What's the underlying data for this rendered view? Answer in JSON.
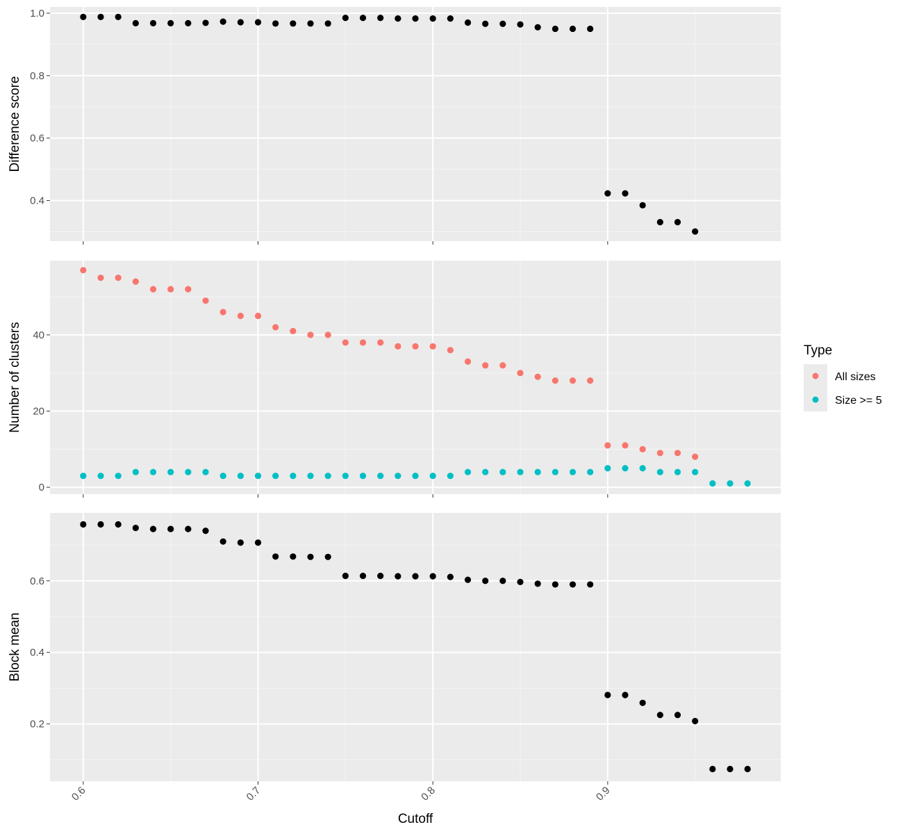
{
  "chart_data": [
    {
      "type": "scatter",
      "ylabel": "Difference score",
      "ylim": [
        0.27,
        1.02
      ],
      "yticks": [
        0.4,
        0.6,
        0.8,
        1.0
      ],
      "ytick_labels": [
        "0.4",
        "0.6",
        "0.8",
        "1.0"
      ],
      "series": [
        {
          "color": "#000000",
          "x": [
            0.6,
            0.61,
            0.62,
            0.63,
            0.64,
            0.65,
            0.66,
            0.67,
            0.68,
            0.69,
            0.7,
            0.71,
            0.72,
            0.73,
            0.74,
            0.75,
            0.76,
            0.77,
            0.78,
            0.79,
            0.8,
            0.81,
            0.82,
            0.83,
            0.84,
            0.85,
            0.86,
            0.87,
            0.88,
            0.89,
            0.9,
            0.91,
            0.92,
            0.93,
            0.94,
            0.95
          ],
          "y": [
            0.988,
            0.988,
            0.988,
            0.968,
            0.968,
            0.968,
            0.968,
            0.969,
            0.973,
            0.971,
            0.971,
            0.967,
            0.967,
            0.967,
            0.967,
            0.985,
            0.985,
            0.985,
            0.983,
            0.983,
            0.983,
            0.983,
            0.97,
            0.966,
            0.966,
            0.964,
            0.955,
            0.95,
            0.95,
            0.95,
            0.423,
            0.423,
            0.385,
            0.331,
            0.331,
            0.301
          ]
        }
      ]
    },
    {
      "type": "scatter",
      "ylabel": "Number of clusters",
      "ylim": [
        -1.8,
        59.5
      ],
      "yticks": [
        0,
        20,
        40
      ],
      "ytick_labels": [
        "0",
        "20",
        "40"
      ],
      "legend": {
        "title": "Type",
        "position": "right",
        "items": [
          {
            "label": "All sizes",
            "color": "#F8766D"
          },
          {
            "label": "Size >= 5",
            "color": "#00BFC4"
          }
        ]
      },
      "series": [
        {
          "name": "All sizes",
          "color": "#F8766D",
          "x": [
            0.6,
            0.61,
            0.62,
            0.63,
            0.64,
            0.65,
            0.66,
            0.67,
            0.68,
            0.69,
            0.7,
            0.71,
            0.72,
            0.73,
            0.74,
            0.75,
            0.76,
            0.77,
            0.78,
            0.79,
            0.8,
            0.81,
            0.82,
            0.83,
            0.84,
            0.85,
            0.86,
            0.87,
            0.88,
            0.89,
            0.9,
            0.91,
            0.92,
            0.93,
            0.94,
            0.95
          ],
          "y": [
            57,
            55,
            55,
            54,
            52,
            52,
            52,
            49,
            46,
            45,
            45,
            42,
            41,
            40,
            40,
            38,
            38,
            38,
            37,
            37,
            37,
            36,
            33,
            32,
            32,
            30,
            29,
            28,
            28,
            28,
            11,
            11,
            10,
            9,
            9,
            8
          ]
        },
        {
          "name": "Size >= 5",
          "color": "#00BFC4",
          "x": [
            0.6,
            0.61,
            0.62,
            0.63,
            0.64,
            0.65,
            0.66,
            0.67,
            0.68,
            0.69,
            0.7,
            0.71,
            0.72,
            0.73,
            0.74,
            0.75,
            0.76,
            0.77,
            0.78,
            0.79,
            0.8,
            0.81,
            0.82,
            0.83,
            0.84,
            0.85,
            0.86,
            0.87,
            0.88,
            0.89,
            0.9,
            0.91,
            0.92,
            0.93,
            0.94,
            0.95,
            0.96,
            0.97,
            0.98
          ],
          "y": [
            3,
            3,
            3,
            4,
            4,
            4,
            4,
            4,
            3,
            3,
            3,
            3,
            3,
            3,
            3,
            3,
            3,
            3,
            3,
            3,
            3,
            3,
            4,
            4,
            4,
            4,
            4,
            4,
            4,
            4,
            5,
            5,
            5,
            4,
            4,
            4,
            1,
            1,
            1
          ]
        }
      ]
    },
    {
      "type": "scatter",
      "ylabel": "Block mean",
      "xlabel": "Cutoff",
      "ylim": [
        0.04,
        0.79
      ],
      "yticks": [
        0.2,
        0.4,
        0.6
      ],
      "ytick_labels": [
        "0.2",
        "0.4",
        "0.6"
      ],
      "series": [
        {
          "color": "#000000",
          "x": [
            0.6,
            0.61,
            0.62,
            0.63,
            0.64,
            0.65,
            0.66,
            0.67,
            0.68,
            0.69,
            0.7,
            0.71,
            0.72,
            0.73,
            0.74,
            0.75,
            0.76,
            0.77,
            0.78,
            0.79,
            0.8,
            0.81,
            0.82,
            0.83,
            0.84,
            0.85,
            0.86,
            0.87,
            0.88,
            0.89,
            0.9,
            0.91,
            0.92,
            0.93,
            0.94,
            0.95,
            0.96,
            0.97,
            0.98
          ],
          "y": [
            0.758,
            0.758,
            0.758,
            0.748,
            0.745,
            0.745,
            0.745,
            0.74,
            0.71,
            0.707,
            0.707,
            0.668,
            0.668,
            0.667,
            0.667,
            0.614,
            0.614,
            0.614,
            0.613,
            0.613,
            0.613,
            0.611,
            0.603,
            0.6,
            0.6,
            0.597,
            0.592,
            0.59,
            0.59,
            0.59,
            0.281,
            0.281,
            0.259,
            0.225,
            0.225,
            0.208,
            0.074,
            0.074,
            0.074
          ]
        }
      ]
    }
  ],
  "xaxis": {
    "label": "Cutoff",
    "xlim": [
      0.581,
      0.999
    ],
    "ticks": [
      0.6,
      0.7,
      0.8,
      0.9
    ],
    "tick_labels": [
      "0.6",
      "0.7",
      "0.8",
      "0.9"
    ]
  }
}
